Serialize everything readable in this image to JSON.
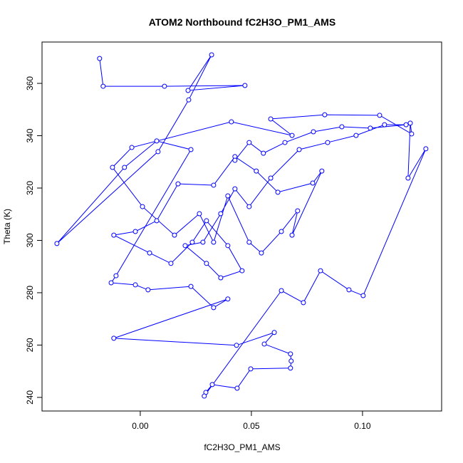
{
  "chart_data": {
    "type": "line",
    "title": "ATOM2 Northbound fC2H3O_PM1_AMS",
    "x_label": "fC2H3O_PM1_AMS",
    "y_label": "Theta (K)",
    "color": "#0000ff",
    "xlim": [
      -0.0442,
      0.1356
    ],
    "ylim": [
      234.8,
      375.8
    ],
    "xticks": [
      {
        "value": 0,
        "label": "0.00"
      },
      {
        "value": 0.05,
        "label": "0.05"
      },
      {
        "value": 0.1,
        "label": "0.10"
      }
    ],
    "yticks": [
      240,
      260,
      280,
      300,
      320,
      340,
      360
    ],
    "x": [
      -0.0183,
      -0.0167,
      0.0109,
      0.0471,
      0.0215,
      0.0321,
      0.0218,
      0.008,
      -0.0375,
      -0.0071,
      0.0074,
      0.0228,
      -0.0109,
      -0.0131,
      -0.0022,
      0.0035,
      0.0228,
      0.033,
      0.0394,
      -0.0119,
      0.0433,
      0.0603,
      0.0558,
      0.0676,
      0.0679,
      0.0676,
      0.0497,
      0.0436,
      0.0324,
      0.0295,
      0.0288,
      0.0635,
      0.0734,
      0.0811,
      0.0939,
      0.1003,
      0.1285,
      0.1205,
      0.1215,
      0.1221,
      0.1077,
      0.083,
      0.0587,
      0.0683,
      0.041,
      -0.0038,
      -0.0125,
      0.001,
      0.0154,
      0.0266,
      0.033,
      0.0394,
      0.049,
      0.0545,
      0.0635,
      0.0708,
      0.0683,
      0.0817,
      0.0776,
      0.0619,
      0.0522,
      0.0426,
      0.033,
      0.017,
      0.0074,
      -0.0022,
      -0.0119,
      0.0042,
      0.0138,
      0.0234,
      0.0298,
      0.0394,
      0.0458,
      0.0362,
      0.0298,
      0.0202,
      0.0282,
      0.0362,
      0.0426,
      0.049,
      0.0587,
      0.0715,
      0.0843,
      0.0971,
      0.1099,
      0.1196,
      0.1035,
      0.0907,
      0.0779,
      0.0651,
      0.0554,
      0.049,
      0.0426
    ],
    "y": [
      369.5,
      358.9,
      358.9,
      359.2,
      357.3,
      370.9,
      353.7,
      333.9,
      298.8,
      327.9,
      338.0,
      334.7,
      286.5,
      283.8,
      283.0,
      281.1,
      282.4,
      274.3,
      277.6,
      262.6,
      259.9,
      264.8,
      260.4,
      256.6,
      253.9,
      251.2,
      250.9,
      243.5,
      244.9,
      241.9,
      240.5,
      280.8,
      276.2,
      288.4,
      281.1,
      278.9,
      335.0,
      323.8,
      344.8,
      340.7,
      347.8,
      348.0,
      346.4,
      340.1,
      345.3,
      335.5,
      327.9,
      312.9,
      302.0,
      310.2,
      299.3,
      317.0,
      299.3,
      295.2,
      303.4,
      311.3,
      302.0,
      326.5,
      321.9,
      318.4,
      326.5,
      332.0,
      321.1,
      321.6,
      307.5,
      303.4,
      302.0,
      295.2,
      291.2,
      299.3,
      307.5,
      298.0,
      288.4,
      285.7,
      291.2,
      298.0,
      299.3,
      310.2,
      319.7,
      312.9,
      323.8,
      334.7,
      337.4,
      340.1,
      344.2,
      344.2,
      342.9,
      343.4,
      341.5,
      337.4,
      333.3,
      337.4,
      330.6
    ]
  }
}
